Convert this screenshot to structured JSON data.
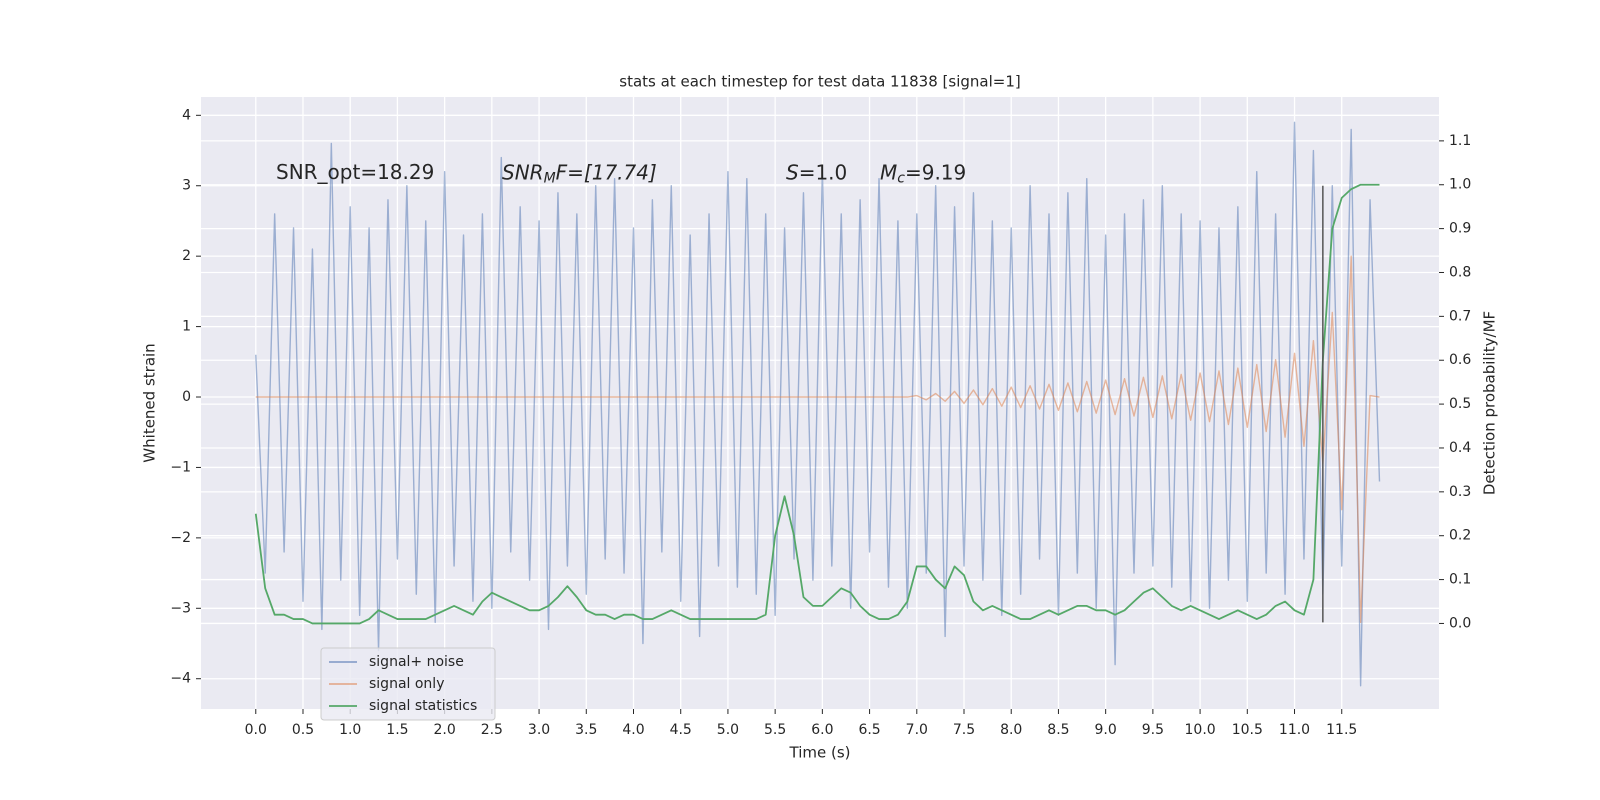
{
  "chart_data": {
    "type": "line",
    "title": "stats at each timestep for test data 11838 [signal=1]",
    "xlabel": "Time (s)",
    "ylabel": "Whitened strain",
    "y2label": "Detection probability/MF",
    "xlim": [
      -0.58,
      12.53
    ],
    "ylim": [
      -4.43,
      4.26
    ],
    "y2lim": [
      -0.195,
      1.2
    ],
    "xticks": [
      {
        "value": 0,
        "label": "0.0"
      },
      0.5,
      {
        "value": 1,
        "label": "1.0"
      },
      1.5,
      {
        "value": 2,
        "label": "2.0"
      },
      2.5,
      {
        "value": 3,
        "label": "3.0"
      },
      3.5,
      {
        "value": 4,
        "label": "4.0"
      },
      4.5,
      {
        "value": 5,
        "label": "5.0"
      },
      5.5,
      {
        "value": 6,
        "label": "6.0"
      },
      6.5,
      {
        "value": 7,
        "label": "7.0"
      },
      7.5,
      {
        "value": 8,
        "label": "8.0"
      },
      8.5,
      {
        "value": 9,
        "label": "9.0"
      },
      9.5,
      {
        "value": 10,
        "label": "10.0"
      },
      10.5,
      {
        "value": 11,
        "label": "11.0"
      },
      11.5
    ],
    "yticks": [
      {
        "value": -4,
        "label": "−4"
      },
      {
        "value": -3,
        "label": "−3"
      },
      {
        "value": -2,
        "label": "−2"
      },
      {
        "value": -1,
        "label": "−1"
      },
      0,
      1,
      2,
      3,
      4
    ],
    "y2ticks": [
      {
        "value": 0,
        "label": "0.0"
      },
      0.1,
      0.2,
      0.3,
      0.4,
      0.5,
      0.6,
      0.7,
      0.8,
      0.9,
      {
        "value": 1,
        "label": "1.0"
      },
      1.1
    ],
    "grid": true,
    "legend": "lower left",
    "annotations": [
      {
        "text": "SNR_opt=18.29"
      },
      {
        "main": "SNR",
        "sub": "M",
        "rest": "F=[17.74]"
      },
      {
        "main": "S",
        "rest": "=1.0"
      },
      {
        "main": "M",
        "sub": "c",
        "rest": "=9.19"
      }
    ],
    "vline": {
      "x": 11.3,
      "y": [
        -3.2,
        3.0
      ],
      "color": "#555555"
    },
    "x": [
      0.0,
      0.1,
      0.2,
      0.3,
      0.4,
      0.5,
      0.6,
      0.7,
      0.8,
      0.9,
      1.0,
      1.1,
      1.2,
      1.3,
      1.4,
      1.5,
      1.6,
      1.7,
      1.8,
      1.9,
      2.0,
      2.1,
      2.2,
      2.3,
      2.4,
      2.5,
      2.6,
      2.7,
      2.8,
      2.9,
      3.0,
      3.1,
      3.2,
      3.3,
      3.4,
      3.5,
      3.6,
      3.7,
      3.8,
      3.9,
      4.0,
      4.1,
      4.2,
      4.3,
      4.4,
      4.5,
      4.6,
      4.7,
      4.8,
      4.9,
      5.0,
      5.1,
      5.2,
      5.3,
      5.4,
      5.5,
      5.6,
      5.7,
      5.8,
      5.9,
      6.0,
      6.1,
      6.2,
      6.3,
      6.4,
      6.5,
      6.6,
      6.7,
      6.8,
      6.9,
      7.0,
      7.1,
      7.2,
      7.3,
      7.4,
      7.5,
      7.6,
      7.7,
      7.8,
      7.9,
      8.0,
      8.1,
      8.2,
      8.3,
      8.4,
      8.5,
      8.6,
      8.7,
      8.8,
      8.9,
      9.0,
      9.1,
      9.2,
      9.3,
      9.4,
      9.5,
      9.6,
      9.7,
      9.8,
      9.9,
      10.0,
      10.1,
      10.2,
      10.3,
      10.4,
      10.5,
      10.6,
      10.7,
      10.8,
      10.9,
      11.0,
      11.1,
      11.2,
      11.3,
      11.4,
      11.5,
      11.6,
      11.7,
      11.8,
      11.9
    ],
    "series": [
      {
        "name": "signal+ noise",
        "color": "#4c72b0",
        "values": [
          0.6,
          -2.5,
          2.6,
          -2.2,
          2.4,
          -2.9,
          2.1,
          -3.3,
          3.6,
          -2.6,
          2.7,
          -3.1,
          2.4,
          -3.6,
          2.8,
          -2.3,
          3.0,
          -2.8,
          2.5,
          -3.2,
          3.2,
          -2.4,
          2.3,
          -2.9,
          2.6,
          -3.0,
          3.4,
          -2.2,
          2.7,
          -2.6,
          2.5,
          -3.3,
          2.9,
          -2.4,
          2.6,
          -2.8,
          3.0,
          -2.3,
          3.1,
          -2.5,
          2.4,
          -3.5,
          2.8,
          -2.2,
          3.0,
          -2.9,
          2.3,
          -3.4,
          2.6,
          -2.4,
          3.2,
          -2.7,
          3.1,
          -2.8,
          2.6,
          -3.1,
          2.4,
          -2.3,
          2.9,
          -2.6,
          3.2,
          -2.4,
          2.6,
          -3.0,
          2.8,
          -2.2,
          3.1,
          -2.7,
          2.5,
          -3.0,
          2.6,
          -2.5,
          3.0,
          -3.4,
          2.7,
          -2.4,
          2.9,
          -2.6,
          2.5,
          -3.1,
          2.4,
          -2.8,
          3.0,
          -2.3,
          2.6,
          -3.1,
          2.9,
          -2.5,
          3.1,
          -3.0,
          2.3,
          -3.8,
          2.6,
          -2.5,
          2.8,
          -2.4,
          3.0,
          -2.7,
          2.6,
          -2.9,
          2.5,
          -3.0,
          2.4,
          -2.6,
          2.7,
          -2.9,
          3.2,
          -2.5,
          2.6,
          -2.8,
          3.9,
          -2.3,
          3.5,
          -2.8,
          3.0,
          -2.4,
          3.8,
          -4.1,
          2.8,
          -1.2
        ]
      },
      {
        "name": "signal only",
        "color": "#dd8452",
        "values": [
          0,
          0,
          0,
          0,
          0,
          0,
          0,
          0,
          0,
          0,
          0,
          0,
          0,
          0,
          0,
          0,
          0,
          0,
          0,
          0,
          0,
          0,
          0,
          0,
          0,
          0,
          0,
          0,
          0,
          0,
          0,
          0,
          0,
          0,
          0,
          0,
          0,
          0,
          0,
          0,
          0,
          0,
          0,
          0,
          0,
          0,
          0,
          0,
          0,
          0,
          0,
          0,
          0,
          0,
          0,
          0,
          0,
          0,
          0,
          0,
          0,
          0,
          0,
          0,
          0,
          0,
          0,
          0,
          0,
          0,
          0.02,
          -0.04,
          0.05,
          -0.06,
          0.08,
          -0.09,
          0.1,
          -0.11,
          0.12,
          -0.13,
          0.14,
          -0.15,
          0.16,
          -0.17,
          0.18,
          -0.19,
          0.2,
          -0.21,
          0.22,
          -0.23,
          0.24,
          -0.25,
          0.26,
          -0.27,
          0.28,
          -0.29,
          0.3,
          -0.31,
          0.32,
          -0.33,
          0.34,
          -0.35,
          0.37,
          -0.39,
          0.41,
          -0.43,
          0.46,
          -0.49,
          0.53,
          -0.57,
          0.62,
          -0.7,
          0.8,
          -0.95,
          1.2,
          -1.6,
          2.0,
          -3.2,
          0.02,
          0.0
        ]
      },
      {
        "name": "signal statistics",
        "color": "#55a868",
        "axis": "y2",
        "values": [
          0.25,
          0.08,
          0.02,
          0.02,
          0.01,
          0.01,
          0.0,
          0.0,
          0.0,
          0.0,
          0.0,
          0.0,
          0.01,
          0.03,
          0.02,
          0.01,
          0.01,
          0.01,
          0.01,
          0.02,
          0.03,
          0.04,
          0.03,
          0.02,
          0.05,
          0.07,
          0.06,
          0.05,
          0.04,
          0.03,
          0.03,
          0.04,
          0.06,
          0.085,
          0.06,
          0.03,
          0.02,
          0.02,
          0.01,
          0.02,
          0.02,
          0.01,
          0.01,
          0.02,
          0.03,
          0.02,
          0.01,
          0.01,
          0.01,
          0.01,
          0.01,
          0.01,
          0.01,
          0.01,
          0.02,
          0.2,
          0.29,
          0.2,
          0.06,
          0.04,
          0.04,
          0.06,
          0.08,
          0.07,
          0.04,
          0.02,
          0.01,
          0.01,
          0.02,
          0.05,
          0.13,
          0.13,
          0.1,
          0.08,
          0.13,
          0.11,
          0.05,
          0.03,
          0.04,
          0.03,
          0.02,
          0.01,
          0.01,
          0.02,
          0.03,
          0.02,
          0.03,
          0.04,
          0.04,
          0.03,
          0.03,
          0.02,
          0.03,
          0.05,
          0.07,
          0.08,
          0.06,
          0.04,
          0.03,
          0.04,
          0.03,
          0.02,
          0.01,
          0.02,
          0.03,
          0.02,
          0.01,
          0.02,
          0.04,
          0.05,
          0.03,
          0.02,
          0.1,
          0.6,
          0.9,
          0.97,
          0.99,
          1.0,
          1.0,
          1.0
        ]
      }
    ]
  }
}
